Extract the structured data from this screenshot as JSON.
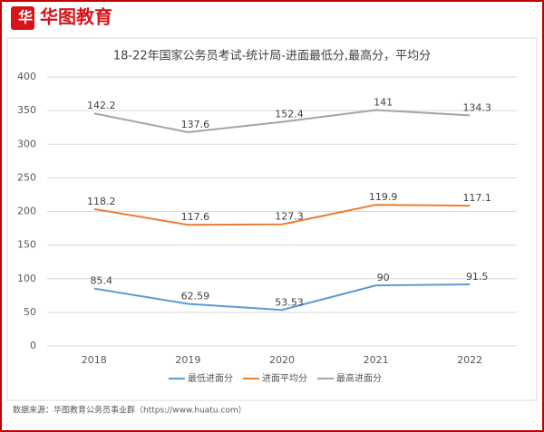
{
  "header": {
    "logo": "华图教育"
  },
  "chart_data": {
    "type": "line",
    "stacked": true,
    "title": "18-22年国家公务员考试-统计局-进面最低分,最高分，平均分",
    "categories": [
      "2018",
      "2019",
      "2020",
      "2021",
      "2022"
    ],
    "series": [
      {
        "name": "最低进面分",
        "color": "#5b9bd5",
        "values": [
          85.4,
          62.59,
          53.53,
          90,
          91.5
        ]
      },
      {
        "name": "进面平均分",
        "color": "#ed7d31",
        "values": [
          118.2,
          117.6,
          127.3,
          119.9,
          117.1
        ]
      },
      {
        "name": "最高进面分",
        "color": "#a5a5a5",
        "values": [
          142.2,
          137.6,
          152.4,
          141,
          134.3
        ]
      }
    ],
    "ylim": [
      0,
      400
    ],
    "yticks": [
      0,
      50,
      100,
      150,
      200,
      250,
      300,
      350,
      400
    ],
    "grid": true,
    "legend": "bottom"
  },
  "footer": {
    "source": "数据来源：华图教育公务员事业群（https://www.huatu.com）"
  }
}
